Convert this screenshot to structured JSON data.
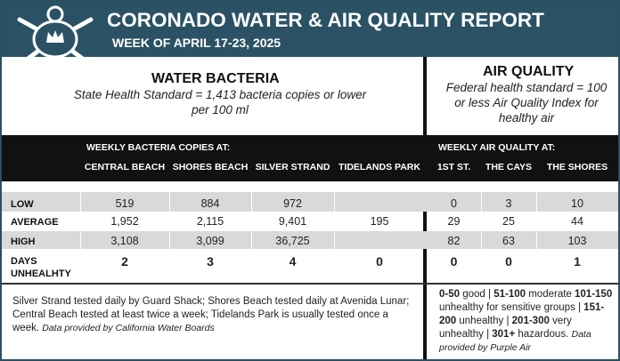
{
  "header": {
    "title": "CORONADO WATER & AIR QUALITY REPORT",
    "subtitle": "WEEK OF APRIL 17-23, 2025"
  },
  "water": {
    "title": "WATER BACTERIA",
    "standard": "State Health Standard  = 1,413 bacteria copies or lower per 100 ml"
  },
  "air": {
    "title": "AIR QUALITY",
    "standard": "Federal health standard = 100 or less Air Quality Index for healthy air"
  },
  "table": {
    "water_heading": "WEEKLY BACTERIA COPIES AT:",
    "air_heading": "WEEKLY AIR QUALITY AT:",
    "water_columns": [
      "CENTRAL BEACH",
      "SHORES BEACH",
      "SILVER STRAND",
      "TIDELANDS PARK"
    ],
    "air_columns": [
      "1ST ST.",
      "THE CAYS",
      "THE SHORES"
    ],
    "rows": [
      {
        "label": "LOW",
        "water": [
          "519",
          "884",
          "972",
          null
        ],
        "air": [
          "0",
          "3",
          "10"
        ]
      },
      {
        "label": "AVERAGE",
        "water": [
          "1,952",
          "2,115",
          "9,401",
          "195"
        ],
        "air": [
          "29",
          "25",
          "44"
        ]
      },
      {
        "label": "HIGH",
        "water": [
          "3,108",
          "3,099",
          "36,725",
          null
        ],
        "air": [
          "82",
          "63",
          "103"
        ]
      },
      {
        "label": "DAYS UNHEALHTY",
        "water": [
          "2",
          "3",
          "4",
          "0"
        ],
        "air": [
          "0",
          "0",
          "1"
        ]
      }
    ]
  },
  "footer": {
    "water_note": "Silver Strand tested daily by Guard Shack; Shores Beach tested daily at Avenida Lunar; Central Beach tested at least twice a week; Tidelands Park is usually tested once a week.",
    "water_source": "Data provided by California Water Boards",
    "aqi_scale": [
      {
        "range": "0-50",
        "label": "good |"
      },
      {
        "range": "51-100",
        "label": "moderate"
      },
      {
        "range": "101-150",
        "label": "unhealthy for sensitive groups |"
      },
      {
        "range": "151-200",
        "label": "unhealthy |"
      },
      {
        "range": "201-300",
        "label": "very unhealthy |"
      },
      {
        "range": "301+",
        "label": "hazardous."
      }
    ],
    "air_source": "Data provided by Purple Air"
  }
}
